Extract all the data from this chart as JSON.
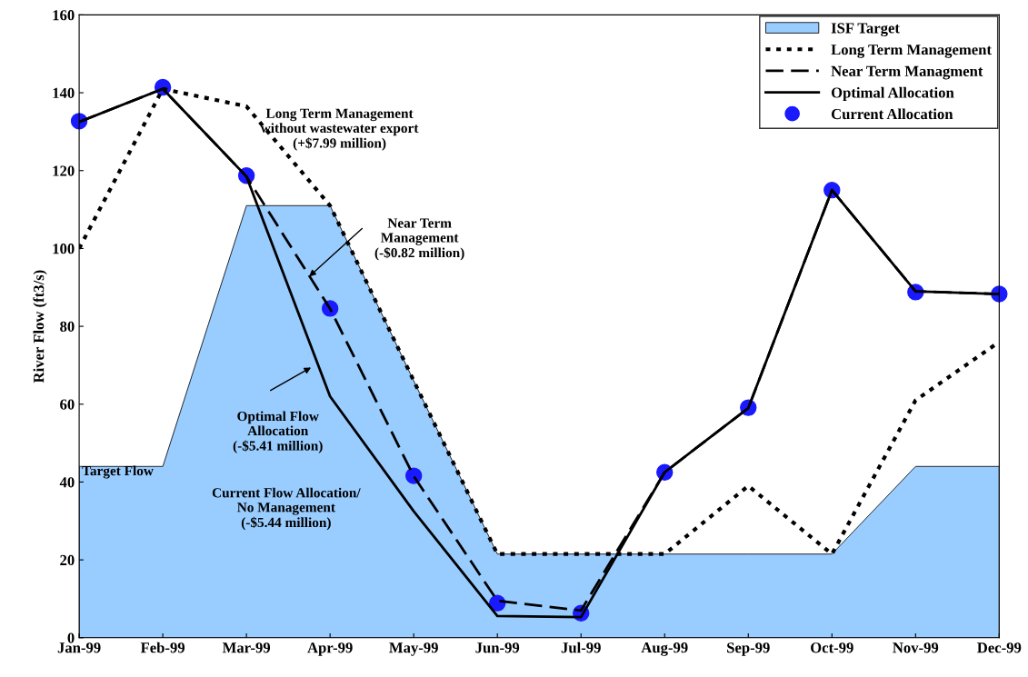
{
  "chart_data": {
    "type": "line",
    "ylabel": "River Flow (ft3/s)",
    "categories": [
      "Jan-99",
      "Feb-99",
      "Mar-99",
      "Apr-99",
      "May-99",
      "Jun-99",
      "Jul-99",
      "Aug-99",
      "Sep-99",
      "Oct-99",
      "Nov-99",
      "Dec-99"
    ],
    "series": [
      {
        "name": "ISF Target",
        "type": "area",
        "color": "#99ccff",
        "values": [
          44,
          44,
          111,
          111,
          66,
          21.5,
          21.5,
          21.5,
          21.5,
          21.5,
          44,
          44
        ]
      },
      {
        "name": "Long Term Management",
        "line_style": "dotted",
        "color": "#000000",
        "values": [
          100,
          141,
          136.5,
          111,
          66,
          21.5,
          21.5,
          21.5,
          39,
          21.5,
          61,
          76
        ]
      },
      {
        "name": "Near Term Managment",
        "line_style": "dashed",
        "color": "#000000",
        "values": [
          132.5,
          141,
          118.5,
          84.5,
          41.5,
          9.5,
          7,
          42.5,
          59,
          115,
          89,
          88.3
        ]
      },
      {
        "name": "Optimal Allocation",
        "line_style": "solid",
        "color": "#000000",
        "values": [
          132.5,
          141,
          118.5,
          62,
          32.5,
          5.6,
          5.3,
          42.5,
          59,
          115,
          89,
          88.3
        ]
      },
      {
        "name": "Current Allocation",
        "type": "scatter",
        "marker": "circle",
        "color": "#1a1aff",
        "values": [
          132.7,
          141.4,
          118.7,
          84.6,
          41.6,
          8.9,
          6.3,
          42.5,
          59.1,
          115,
          88.8,
          88.3
        ]
      }
    ],
    "ylim": [
      0,
      160
    ],
    "yticks": [
      0,
      20,
      40,
      60,
      80,
      100,
      120,
      140,
      160
    ],
    "grid": false,
    "legend": "top right",
    "annotations": [
      "Long Term Management\nwithout wastewater export\n(+$7.99 million)",
      "Near Term\nManagement\n(-$0.82 million)",
      "Optimal Flow\nAllocation\n(-$5.41 million)",
      "Current Flow Allocation/\nNo Management\n(-$5.44 million)",
      "Target Flow"
    ]
  }
}
